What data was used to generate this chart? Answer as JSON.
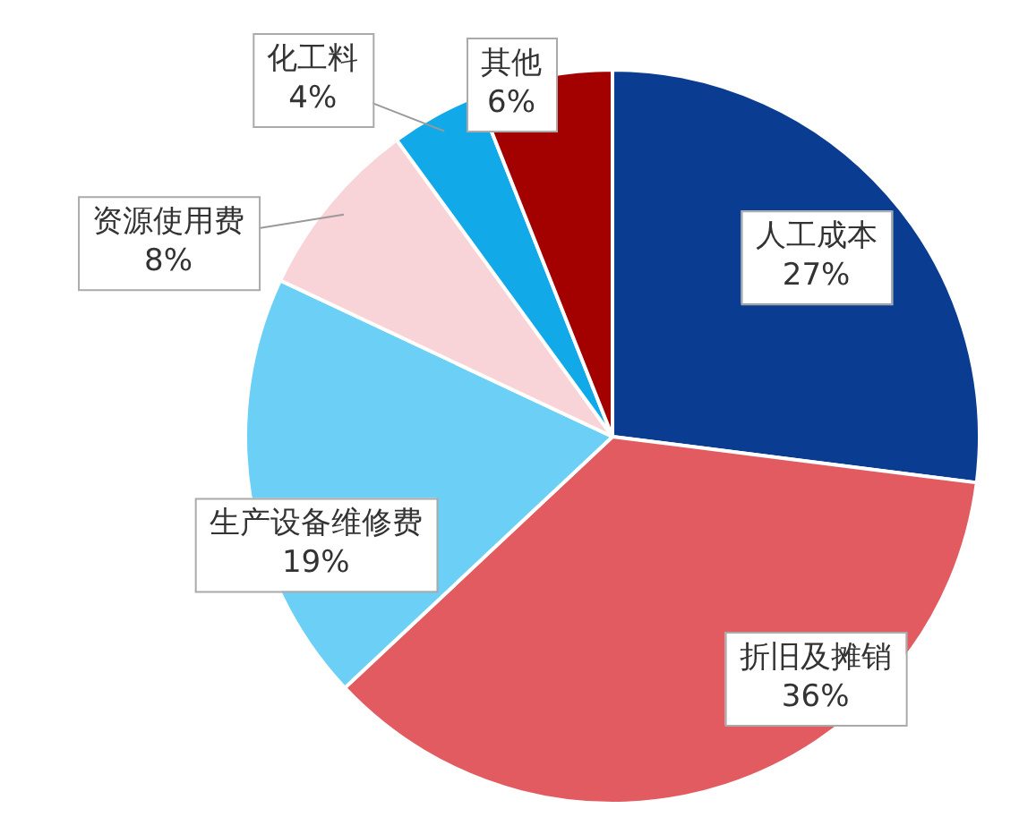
{
  "chart_data": {
    "type": "pie",
    "categories": [
      "人工成本",
      "折旧及摊销",
      "生产设备维修费",
      "资源使用费",
      "化工料",
      "其他"
    ],
    "values": [
      27,
      36,
      19,
      8,
      4,
      6
    ],
    "colors": [
      "#0a3d91",
      "#e15b61",
      "#6ccff6",
      "#f8d3d7",
      "#12a9e9",
      "#a30000"
    ],
    "value_labels": [
      "27%",
      "36%",
      "19%",
      "8%",
      "4%",
      "6%"
    ],
    "legend": false
  }
}
